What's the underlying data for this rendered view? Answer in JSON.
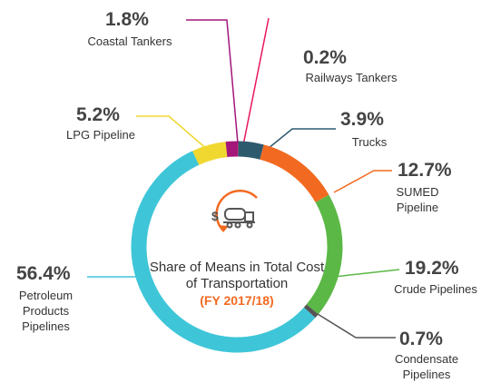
{
  "chart_data": {
    "type": "donut",
    "title": "Share of Means in Total Cost of Transportation",
    "subtitle": "(FY 2017/18)",
    "categories": [
      "Railways Tankers",
      "Trucks",
      "SUMED Pipeline",
      "Crude Pipelines",
      "Condensate Pipelines",
      "Petroleum Products Pipelines",
      "LPG Pipeline",
      "Coastal Tankers"
    ],
    "values": [
      0.2,
      3.9,
      12.7,
      19.2,
      0.7,
      56.4,
      5.2,
      1.8
    ],
    "value_labels": [
      "0.2%",
      "3.9%",
      "12.7%",
      "19.2%",
      "0.7%",
      "56.4%",
      "5.2%",
      "1.8%"
    ],
    "colors": [
      "#e8175d",
      "#2e5a6e",
      "#f26a21",
      "#5bb846",
      "#555555",
      "#3ec6d8",
      "#f0d830",
      "#a3167a"
    ]
  }
}
